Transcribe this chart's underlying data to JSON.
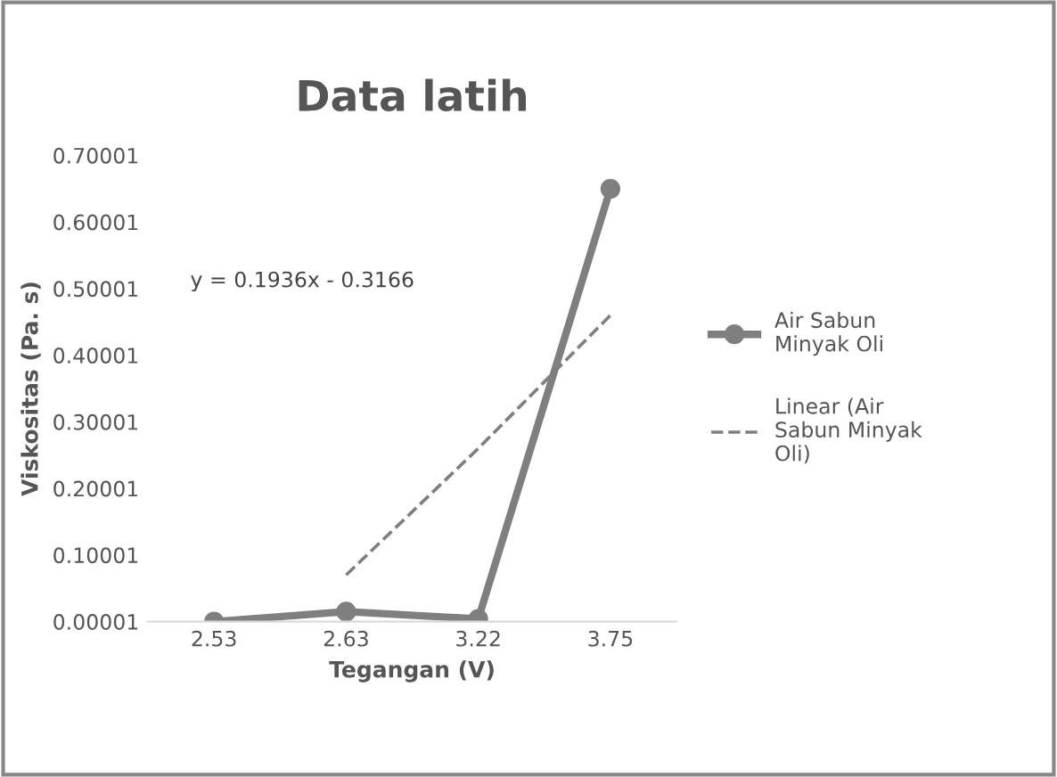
{
  "chart_data": {
    "type": "line",
    "title": "Data latih",
    "xlabel": "Tegangan (V)",
    "ylabel": "Viskositas (Pa. s)",
    "categories": [
      "2.53",
      "2.63",
      "3.22",
      "3.75"
    ],
    "series": [
      {
        "name": "Air Sabun Minyak Oli",
        "color": "#7f7f7f",
        "values": [
          1e-05,
          0.015,
          0.004,
          0.65
        ],
        "marker": "circle",
        "line_style": "solid"
      },
      {
        "name": "Linear (Air Sabun Minyak Oli)",
        "color": "#7f7f7f",
        "values": [
          null,
          0.07,
          0.26,
          0.46
        ],
        "marker": "none",
        "line_style": "dashed"
      }
    ],
    "ylim": [
      1e-05,
      0.70001
    ],
    "yticks": [
      {
        "value": 1e-05,
        "label": "0.00001"
      },
      {
        "value": 0.10001,
        "label": "0.10001"
      },
      {
        "value": 0.20001,
        "label": "0.20001"
      },
      {
        "value": 0.30001,
        "label": "0.30001"
      },
      {
        "value": 0.40001,
        "label": "0.40001"
      },
      {
        "value": 0.50001,
        "label": "0.50001"
      },
      {
        "value": 0.60001,
        "label": "0.60001"
      },
      {
        "value": 0.70001,
        "label": "0.70001"
      }
    ],
    "annotations": [
      "y = 0.1936x - 0.3166"
    ],
    "grid": false,
    "legend": "right"
  }
}
